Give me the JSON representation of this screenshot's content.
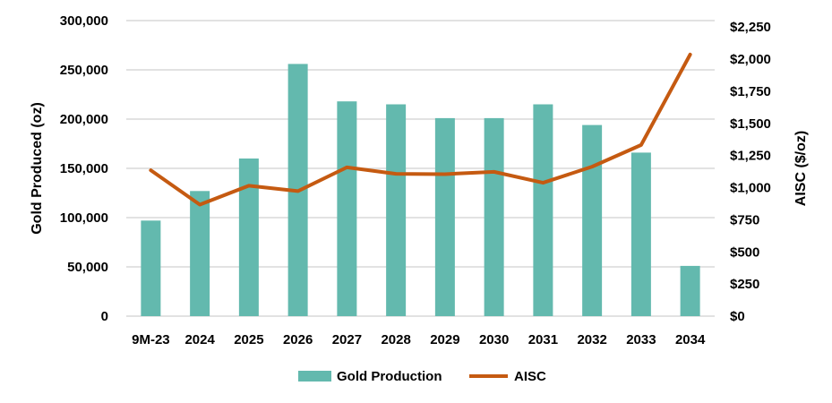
{
  "chart_data": {
    "type": "bar+line",
    "categories": [
      "9M-23",
      "2024",
      "2025",
      "2026",
      "2027",
      "2028",
      "2029",
      "2030",
      "2031",
      "2032",
      "2033",
      "2034"
    ],
    "series": [
      {
        "name": "Gold Production",
        "type": "bar",
        "axis": "left",
        "color": "#63b9ae",
        "values": [
          97000,
          127000,
          160000,
          256000,
          218000,
          215000,
          201000,
          201000,
          215000,
          194000,
          166000,
          51000
        ]
      },
      {
        "name": "AISC",
        "type": "line",
        "axis": "right",
        "color": "#c55a11",
        "values": [
          1135,
          868,
          1015,
          973,
          1158,
          1107,
          1105,
          1123,
          1038,
          1163,
          1332,
          2036
        ]
      }
    ],
    "ylabel": "Gold Produced (oz)",
    "y2label": "AISC ($/oz)",
    "ylim": [
      0,
      300000
    ],
    "y2lim": [
      0,
      2300
    ],
    "yticks": [
      "0",
      "50,000",
      "100,000",
      "150,000",
      "200,000",
      "250,000",
      "300,000"
    ],
    "y2ticks": [
      "$0",
      "$250",
      "$500",
      "$750",
      "$1,000",
      "$1,250",
      "$1,500",
      "$1,750",
      "$2,000",
      "$2,250"
    ],
    "grid": true,
    "legend": "bottom",
    "gridColor": "#d9d9d9"
  }
}
